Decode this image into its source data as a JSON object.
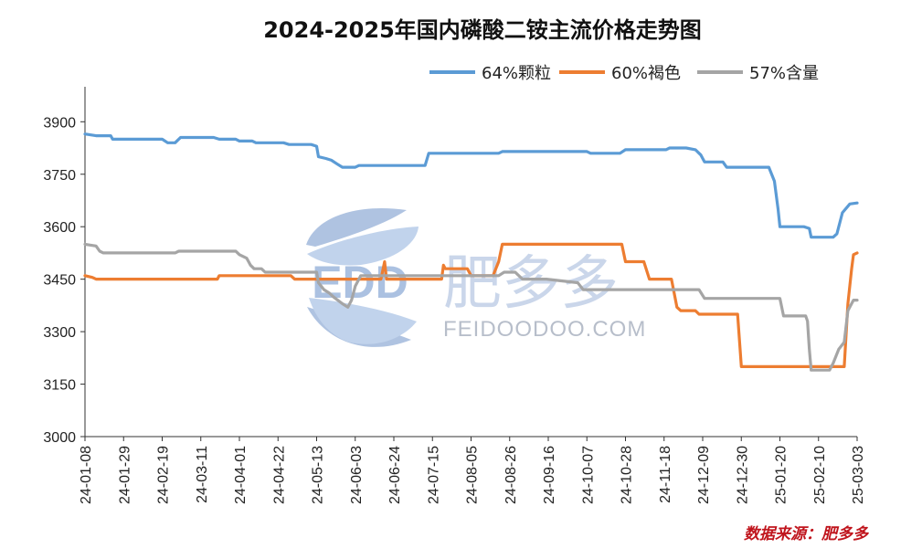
{
  "chart_data": {
    "type": "line",
    "title": "2024-2025年国内磷酸二铵主流价格走势图",
    "source": "数据来源：肥多多",
    "watermark": {
      "name": "肥多多",
      "site": "FEIDOODOO.COM",
      "logo": "EDD"
    },
    "ylim": [
      3000,
      4000
    ],
    "yticks": [
      3000,
      3150,
      3300,
      3450,
      3600,
      3750,
      3900
    ],
    "xlim": [
      "2024-01-08",
      "2025-03-03"
    ],
    "xticks": [
      "24-01-08",
      "24-01-29",
      "24-02-19",
      "24-03-11",
      "24-04-01",
      "24-04-22",
      "24-05-13",
      "24-06-03",
      "24-06-24",
      "24-07-15",
      "24-08-05",
      "24-08-26",
      "24-09-16",
      "24-10-07",
      "24-10-28",
      "24-11-18",
      "24-12-09",
      "24-12-30",
      "25-01-20",
      "25-02-10",
      "25-03-03"
    ],
    "legend_position": "top-right",
    "grid": false,
    "series": [
      {
        "name": "64%颗粒",
        "color": "#5b9bd5",
        "points": [
          [
            "2024-01-08",
            3865
          ],
          [
            "2024-01-14",
            3860
          ],
          [
            "2024-01-22",
            3860
          ],
          [
            "2024-01-23",
            3850
          ],
          [
            "2024-02-19",
            3850
          ],
          [
            "2024-02-22",
            3840
          ],
          [
            "2024-02-26",
            3840
          ],
          [
            "2024-02-29",
            3855
          ],
          [
            "2024-03-18",
            3855
          ],
          [
            "2024-03-21",
            3850
          ],
          [
            "2024-03-30",
            3850
          ],
          [
            "2024-04-01",
            3845
          ],
          [
            "2024-04-08",
            3845
          ],
          [
            "2024-04-10",
            3840
          ],
          [
            "2024-04-25",
            3840
          ],
          [
            "2024-04-28",
            3835
          ],
          [
            "2024-05-10",
            3835
          ],
          [
            "2024-05-13",
            3830
          ],
          [
            "2024-05-14",
            3800
          ],
          [
            "2024-05-18",
            3795
          ],
          [
            "2024-05-21",
            3790
          ],
          [
            "2024-05-24",
            3780
          ],
          [
            "2024-05-27",
            3770
          ],
          [
            "2024-06-03",
            3770
          ],
          [
            "2024-06-05",
            3775
          ],
          [
            "2024-07-11",
            3775
          ],
          [
            "2024-07-13",
            3810
          ],
          [
            "2024-08-20",
            3810
          ],
          [
            "2024-08-22",
            3815
          ],
          [
            "2024-10-07",
            3815
          ],
          [
            "2024-10-09",
            3810
          ],
          [
            "2024-10-25",
            3810
          ],
          [
            "2024-10-28",
            3820
          ],
          [
            "2024-11-19",
            3820
          ],
          [
            "2024-11-21",
            3825
          ],
          [
            "2024-11-30",
            3825
          ],
          [
            "2024-12-05",
            3820
          ],
          [
            "2024-12-08",
            3805
          ],
          [
            "2024-12-10",
            3785
          ],
          [
            "2024-12-20",
            3785
          ],
          [
            "2024-12-22",
            3770
          ],
          [
            "2025-01-14",
            3770
          ],
          [
            "2025-01-17",
            3730
          ],
          [
            "2025-01-19",
            3650
          ],
          [
            "2025-01-20",
            3600
          ],
          [
            "2025-02-02",
            3600
          ],
          [
            "2025-02-05",
            3595
          ],
          [
            "2025-02-06",
            3570
          ],
          [
            "2025-02-18",
            3570
          ],
          [
            "2025-02-20",
            3580
          ],
          [
            "2025-02-23",
            3640
          ],
          [
            "2025-02-27",
            3665
          ],
          [
            "2025-03-03",
            3668
          ]
        ]
      },
      {
        "name": "60%褐色",
        "color": "#ed7d31",
        "points": [
          [
            "2024-01-08",
            3460
          ],
          [
            "2024-01-12",
            3455
          ],
          [
            "2024-01-14",
            3450
          ],
          [
            "2024-03-20",
            3450
          ],
          [
            "2024-03-21",
            3460
          ],
          [
            "2024-04-29",
            3460
          ],
          [
            "2024-05-01",
            3450
          ],
          [
            "2024-06-17",
            3450
          ],
          [
            "2024-06-19",
            3500
          ],
          [
            "2024-06-20",
            3450
          ],
          [
            "2024-07-20",
            3450
          ],
          [
            "2024-07-21",
            3490
          ],
          [
            "2024-07-22",
            3480
          ],
          [
            "2024-08-03",
            3480
          ],
          [
            "2024-08-05",
            3460
          ],
          [
            "2024-08-17",
            3460
          ],
          [
            "2024-08-20",
            3500
          ],
          [
            "2024-08-22",
            3550
          ],
          [
            "2024-10-26",
            3550
          ],
          [
            "2024-10-28",
            3500
          ],
          [
            "2024-11-07",
            3500
          ],
          [
            "2024-11-10",
            3450
          ],
          [
            "2024-11-22",
            3450
          ],
          [
            "2024-11-25",
            3370
          ],
          [
            "2024-11-27",
            3360
          ],
          [
            "2024-12-05",
            3360
          ],
          [
            "2024-12-07",
            3350
          ],
          [
            "2024-12-28",
            3350
          ],
          [
            "2024-12-30",
            3200
          ],
          [
            "2025-02-24",
            3200
          ],
          [
            "2025-02-26",
            3380
          ],
          [
            "2025-02-28",
            3480
          ],
          [
            "2025-03-01",
            3520
          ],
          [
            "2025-03-03",
            3525
          ]
        ]
      },
      {
        "name": "57%含量",
        "color": "#a5a5a5",
        "points": [
          [
            "2024-01-08",
            3550
          ],
          [
            "2024-01-14",
            3545
          ],
          [
            "2024-01-16",
            3530
          ],
          [
            "2024-01-18",
            3525
          ],
          [
            "2024-02-26",
            3525
          ],
          [
            "2024-02-28",
            3530
          ],
          [
            "2024-03-30",
            3530
          ],
          [
            "2024-04-01",
            3520
          ],
          [
            "2024-04-05",
            3510
          ],
          [
            "2024-04-07",
            3490
          ],
          [
            "2024-04-09",
            3480
          ],
          [
            "2024-04-13",
            3480
          ],
          [
            "2024-04-15",
            3470
          ],
          [
            "2024-05-13",
            3470
          ],
          [
            "2024-05-14",
            3440
          ],
          [
            "2024-05-17",
            3420
          ],
          [
            "2024-05-20",
            3410
          ],
          [
            "2024-05-22",
            3400
          ],
          [
            "2024-05-27",
            3380
          ],
          [
            "2024-05-30",
            3370
          ],
          [
            "2024-06-01",
            3390
          ],
          [
            "2024-06-03",
            3430
          ],
          [
            "2024-06-06",
            3460
          ],
          [
            "2024-08-20",
            3460
          ],
          [
            "2024-08-23",
            3470
          ],
          [
            "2024-08-29",
            3470
          ],
          [
            "2024-09-02",
            3450
          ],
          [
            "2024-09-15",
            3450
          ],
          [
            "2024-10-02",
            3440
          ],
          [
            "2024-10-05",
            3420
          ],
          [
            "2024-12-07",
            3420
          ],
          [
            "2024-12-10",
            3395
          ],
          [
            "2025-01-20",
            3395
          ],
          [
            "2025-01-22",
            3345
          ],
          [
            "2025-02-03",
            3345
          ],
          [
            "2025-02-04",
            3330
          ],
          [
            "2025-02-05",
            3250
          ],
          [
            "2025-02-06",
            3190
          ],
          [
            "2025-02-16",
            3190
          ],
          [
            "2025-02-18",
            3210
          ],
          [
            "2025-02-21",
            3250
          ],
          [
            "2025-02-24",
            3270
          ],
          [
            "2025-02-26",
            3360
          ],
          [
            "2025-03-01",
            3390
          ],
          [
            "2025-03-03",
            3390
          ]
        ]
      }
    ]
  }
}
